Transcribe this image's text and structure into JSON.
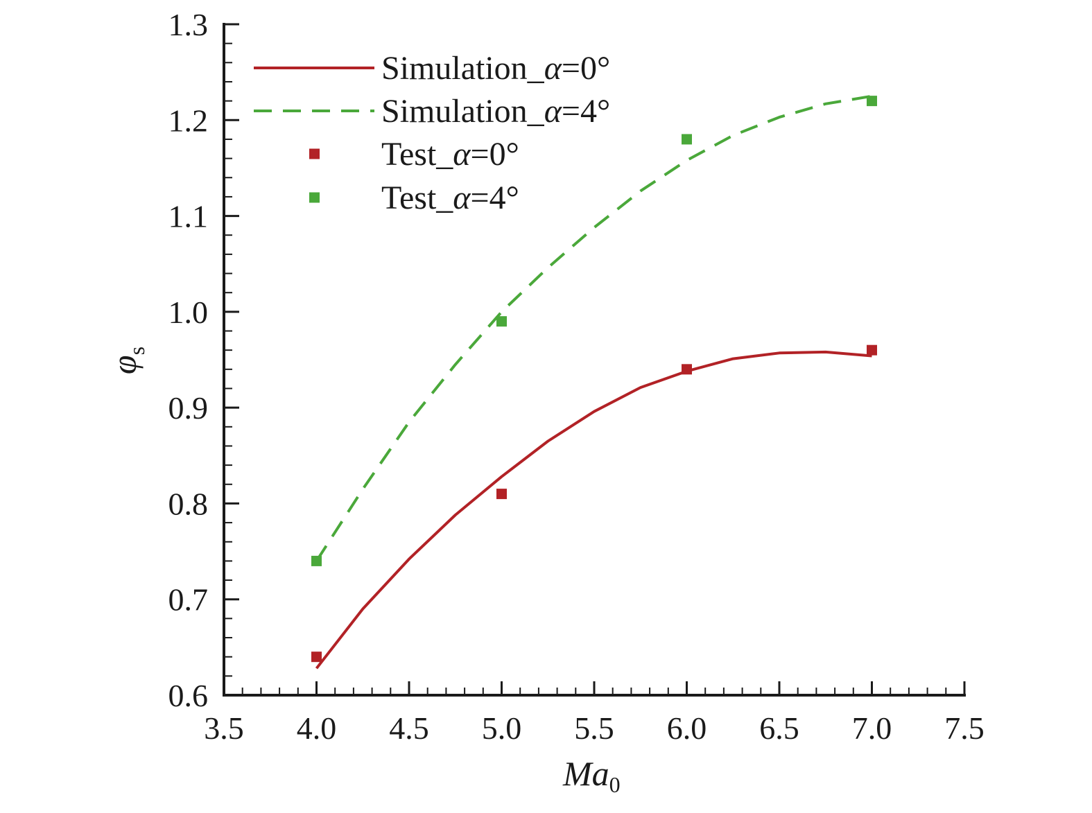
{
  "chart_data": {
    "type": "line",
    "title": "",
    "xlabel": {
      "main": "Ma",
      "sub": "0"
    },
    "ylabel": {
      "main": "φ",
      "sub": "s"
    },
    "xlim": [
      3.5,
      7.5
    ],
    "ylim": [
      0.6,
      1.3
    ],
    "xticks": [
      "3.5",
      "4.0",
      "4.5",
      "5.0",
      "5.5",
      "6.0",
      "6.5",
      "7.0",
      "7.5"
    ],
    "yticks": [
      "0.6",
      "0.7",
      "0.8",
      "0.9",
      "1.0",
      "1.1",
      "1.2",
      "1.3"
    ],
    "grid": false,
    "legend_position": "top-left",
    "series": [
      {
        "name": "Simulation_α=0°",
        "style": "solid-line",
        "color": "#b22226",
        "x": [
          4.0,
          4.25,
          4.5,
          4.75,
          5.0,
          5.25,
          5.5,
          5.75,
          6.0,
          6.25,
          6.5,
          6.75,
          7.0
        ],
        "values": [
          0.628,
          0.69,
          0.742,
          0.788,
          0.828,
          0.865,
          0.896,
          0.921,
          0.938,
          0.951,
          0.957,
          0.958,
          0.954
        ]
      },
      {
        "name": "Simulation_α=4°",
        "style": "dashed-line",
        "color": "#4aa83a",
        "x": [
          4.0,
          4.25,
          4.5,
          4.75,
          5.0,
          5.25,
          5.5,
          5.75,
          6.0,
          6.25,
          6.5,
          6.75,
          7.0
        ],
        "values": [
          0.74,
          0.815,
          0.885,
          0.945,
          1.0,
          1.046,
          1.088,
          1.126,
          1.158,
          1.184,
          1.203,
          1.217,
          1.225
        ]
      },
      {
        "name": "Test_α=0°",
        "style": "square-marker",
        "color": "#b22226",
        "x": [
          4.0,
          5.0,
          6.0,
          7.0
        ],
        "values": [
          0.64,
          0.81,
          0.94,
          0.96
        ]
      },
      {
        "name": "Test_α=4°",
        "style": "square-marker",
        "color": "#4aa83a",
        "x": [
          4.0,
          5.0,
          6.0,
          7.0
        ],
        "values": [
          0.74,
          0.99,
          1.18,
          1.22
        ]
      }
    ]
  }
}
